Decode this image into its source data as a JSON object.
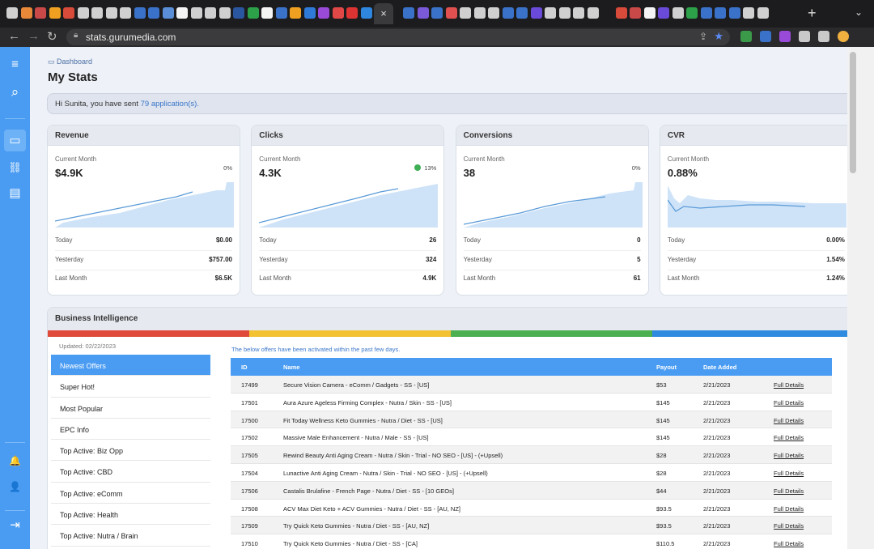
{
  "browser": {
    "tab_colors": [
      "#d0d0d0",
      "#e8893a",
      "#c94848",
      "#f0a020",
      "#d84a3a",
      "#d0d0d0",
      "#d0d0d0",
      "#d0d0d0",
      "#d0d0d0",
      "#3a72c9",
      "#3a72c9",
      "#5a8fd8",
      "#f4f4f4",
      "#d0d0d0",
      "#d0d0d0",
      "#d0d0d0",
      "#2a56a0",
      "#2da04a",
      "#f4f4f4",
      "#3a72c9",
      "#f0a020",
      "#2e7ad6",
      "#9a4ad8",
      "#e04848",
      "#d33",
      "#2e86de",
      "#e03030",
      "#4a9cf2",
      "#3a72c9",
      "#7a5ad8",
      "#3a72c9",
      "#e05050",
      "#d0d0d0",
      "#d0d0d0",
      "#d0d0d0",
      "#3a72c9",
      "#3a72c9",
      "#6a4ad8",
      "#d0d0d0",
      "#d0d0d0",
      "#d0d0d0",
      "#d0d0d0",
      "#1c1c1e",
      "#d84a3a",
      "#c94848",
      "#f4f4f4",
      "#6a4ad8",
      "#d0d0d0",
      "#2da04a",
      "#3a72c9",
      "#3a72c9",
      "#3a72c9",
      "#d0d0d0",
      "#d0d0d0"
    ],
    "active_tab_icon": "×",
    "new_tab": "+",
    "tab_menu": "⌄",
    "url": "stats.gurumedia.com",
    "ext_colors": [
      "#3a9a4a",
      "#3a72c9",
      "#9a4ad8",
      "#c9c9c9",
      "#c9c9c9",
      "#f0b040"
    ]
  },
  "rail": {
    "menu_icon": "≡",
    "search_icon": "⌕",
    "dashboard_icon": "▭",
    "tracking_icon": "⛓",
    "offers_icon": "▤",
    "bell_icon": "🔔",
    "user_icon": "👤",
    "collapse_icon": "⇥"
  },
  "page": {
    "crumb": "Dashboard",
    "title": "My Stats",
    "greeting_prefix": "Hi Sunita, you have sent",
    "greeting_link": "79 application(s)."
  },
  "cards": [
    {
      "title": "Revenue",
      "sub": "Current Month",
      "value": "$4.9K",
      "pct": "0%",
      "pct_up": false,
      "rows": [
        [
          "Today",
          "$0.00"
        ],
        [
          "Yesterday",
          "$757.00"
        ],
        [
          "Last Month",
          "$6.5K"
        ]
      ]
    },
    {
      "title": "Clicks",
      "sub": "Current Month",
      "value": "4.3K",
      "pct": "13%",
      "pct_up": true,
      "rows": [
        [
          "Today",
          "26"
        ],
        [
          "Yesterday",
          "324"
        ],
        [
          "Last Month",
          "4.9K"
        ]
      ]
    },
    {
      "title": "Conversions",
      "sub": "Current Month",
      "value": "38",
      "pct": "0%",
      "pct_up": false,
      "rows": [
        [
          "Today",
          "0"
        ],
        [
          "Yesterday",
          "5"
        ],
        [
          "Last Month",
          "61"
        ]
      ]
    },
    {
      "title": "CVR",
      "sub": "Current Month",
      "value": "0.88%",
      "pct": "",
      "pct_up": false,
      "rows": [
        [
          "Today",
          "0.00%"
        ],
        [
          "Yesterday",
          "1.54%"
        ],
        [
          "Last Month",
          "1.24%"
        ]
      ]
    }
  ],
  "bi": {
    "title": "Business Intelligence",
    "stripe_colors": [
      "#e04a3a",
      "#f2c233",
      "#4caf50",
      "#2e8be0"
    ],
    "updated": "Updated: 02/22/2023",
    "note": "The below offers have been activated within the past few days.",
    "menu": [
      "Newest Offers",
      "Super Hot!",
      "Most Popular",
      "EPC Info",
      "Top Active: Biz Opp",
      "Top Active: CBD",
      "Top Active: eComm",
      "Top Active: Health",
      "Top Active: Nutra / Brain"
    ],
    "columns": {
      "id": "ID",
      "name": "Name",
      "payout": "Payout",
      "date": "Date Added"
    },
    "rows": [
      {
        "id": "17499",
        "name": "Secure Vision Camera - eComm / Gadgets - SS - [US]",
        "payout": "$53",
        "date": "2/21/2023",
        "details": "Full Details"
      },
      {
        "id": "17501",
        "name": "Aura Azure Ageless Firming Complex - Nutra / Skin - SS - [US]",
        "payout": "$145",
        "date": "2/21/2023",
        "details": "Full Details"
      },
      {
        "id": "17500",
        "name": "Fit Today Wellness Keto Gummies - Nutra / Diet - SS - [US]",
        "payout": "$145",
        "date": "2/21/2023",
        "details": "Full Details"
      },
      {
        "id": "17502",
        "name": "Massive Male Enhancement - Nutra / Male - SS - [US]",
        "payout": "$145",
        "date": "2/21/2023",
        "details": "Full Details"
      },
      {
        "id": "17505",
        "name": "Rewind Beauty Anti Aging Cream - Nutra / Skin - Trial - NO SEO - [US] - (+Upsell)",
        "payout": "$28",
        "date": "2/21/2023",
        "details": "Full Details"
      },
      {
        "id": "17504",
        "name": "Lunactive Anti Aging Cream - Nutra / Skin - Trial - NO SEO - [US] - (+Upsell)",
        "payout": "$28",
        "date": "2/21/2023",
        "details": "Full Details"
      },
      {
        "id": "17506",
        "name": "Castalis Brulafine - French Page - Nutra / Diet - SS - [10 GEOs]",
        "payout": "$44",
        "date": "2/21/2023",
        "details": "Full Details"
      },
      {
        "id": "17508",
        "name": "ACV Max Diet Keto + ACV Gummies - Nutra / Diet - SS - [AU, NZ]",
        "payout": "$93.5",
        "date": "2/21/2023",
        "details": "Full Details"
      },
      {
        "id": "17509",
        "name": "Try Quick Keto Gummies - Nutra / Diet - SS - [AU, NZ]",
        "payout": "$93.5",
        "date": "2/21/2023",
        "details": "Full Details"
      },
      {
        "id": "17510",
        "name": "Try Quick Keto Gummies - Nutra / Diet - SS - [CA]",
        "payout": "$110.5",
        "date": "2/21/2023",
        "details": "Full Details"
      }
    ]
  }
}
